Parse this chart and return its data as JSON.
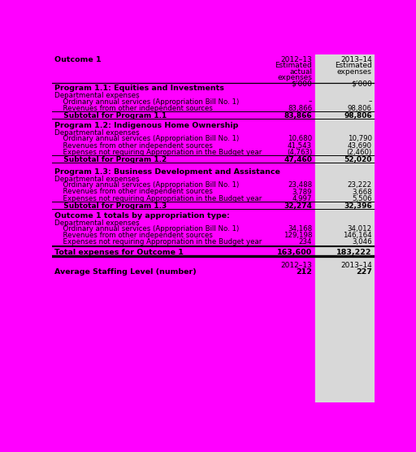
{
  "title": "Outcome 1",
  "col1_header_line1": "2012–13",
  "col2_header_line1": "2013–14",
  "col1_sub1": "Estimated",
  "col1_sub2": "actual",
  "col1_sub3": "expenses",
  "col2_sub1": "Estimated",
  "col2_sub2": "expenses",
  "unit": "$’000",
  "bg_color": "#FF00FF",
  "right_bg_color": "#D8D8D8",
  "rows": [
    {
      "label": "Program 1.1: Equities and Investments",
      "type": "program_header",
      "v1": "",
      "v2": ""
    },
    {
      "label": "Departmental expenses",
      "type": "sub_header",
      "v1": "",
      "v2": ""
    },
    {
      "label": "  Ordinary annual services (Appropriation Bill No. 1)",
      "type": "item",
      "v1": "–",
      "v2": "–"
    },
    {
      "label": "  Revenues from other independent sources",
      "type": "item",
      "v1": "83,866",
      "v2": "98,806"
    },
    {
      "label": "  Subtotal for Program 1.1",
      "type": "subtotal",
      "v1": "83,866",
      "v2": "98,806"
    },
    {
      "label": "",
      "type": "gap",
      "v1": "",
      "v2": ""
    },
    {
      "label": "Program 1.2: Indigenous Home Ownership",
      "type": "program_header",
      "v1": "",
      "v2": ""
    },
    {
      "label": "Departmental expenses",
      "type": "sub_header",
      "v1": "",
      "v2": ""
    },
    {
      "label": "  Ordinary annual services (Appropriation Bill No. 1)",
      "type": "item",
      "v1": "10,680",
      "v2": "10,790"
    },
    {
      "label": "  Revenues from other independent sources",
      "type": "item",
      "v1": "41,543",
      "v2": "43,690"
    },
    {
      "label": "  Expenses not requiring Appropriation in the Budget year",
      "type": "item",
      "v1": "(4,763)",
      "v2": "(2,460)"
    },
    {
      "label": "  Subtotal for Program 1.2",
      "type": "subtotal",
      "v1": "47,460",
      "v2": "52,020"
    },
    {
      "label": "",
      "type": "gap2",
      "v1": "",
      "v2": ""
    },
    {
      "label": "Program 1.3: Business Development and Assistance",
      "type": "program_header",
      "v1": "",
      "v2": ""
    },
    {
      "label": "Departmental expenses",
      "type": "sub_header",
      "v1": "",
      "v2": ""
    },
    {
      "label": "  Ordinary annual services (Appropriation Bill No. 1)",
      "type": "item",
      "v1": "23,488",
      "v2": "23,222"
    },
    {
      "label": "  Revenues from other independent sources",
      "type": "item",
      "v1": "3,789",
      "v2": "3,668"
    },
    {
      "label": "  Expenses not requiring Appropriation in the Budget year",
      "type": "item",
      "v1": "4,997",
      "v2": "5,506"
    },
    {
      "label": "  Subtotal for Program 1.3",
      "type": "subtotal",
      "v1": "32,274",
      "v2": "32,396"
    },
    {
      "label": "",
      "type": "gap",
      "v1": "",
      "v2": ""
    },
    {
      "label": "Outcome 1 totals by appropriation type:",
      "type": "program_header",
      "v1": "",
      "v2": ""
    },
    {
      "label": "Departmental expenses",
      "type": "sub_header",
      "v1": "",
      "v2": ""
    },
    {
      "label": "  Ordinary annual services (Appropriation Bill No. 1)",
      "type": "item",
      "v1": "34,168",
      "v2": "34,012"
    },
    {
      "label": "  Revenues from other independent sources",
      "type": "item",
      "v1": "129,198",
      "v2": "146,164"
    },
    {
      "label": "  Expenses not requiring Appropriation in the Budget year",
      "type": "item",
      "v1": "234",
      "v2": "3,046"
    },
    {
      "label": "Total expenses for Outcome 1",
      "type": "total",
      "v1": "163,600",
      "v2": "183,222"
    },
    {
      "label": "",
      "type": "separator_section",
      "v1": "2012–13",
      "v2": "2013–14"
    },
    {
      "label": "Average Staffing Level (number)",
      "type": "staffing",
      "v1": "212",
      "v2": "227"
    }
  ]
}
